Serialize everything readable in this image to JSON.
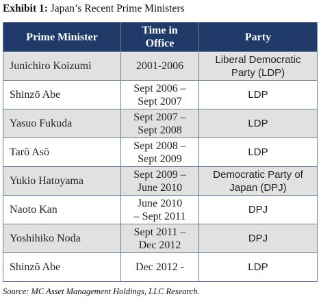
{
  "header": {
    "label": "Exhibit 1:",
    "title": "Japan’s Recent Prime Ministers"
  },
  "table": {
    "columns": [
      "Prime Minister",
      "Time in\nOffice",
      "Party"
    ],
    "rows": [
      [
        "Junichiro Koizumi",
        "2001-2006",
        "Liberal Democratic\nParty (LDP)"
      ],
      [
        "Shinzō Abe",
        "Sept 2006 –\nSept 2007",
        "LDP"
      ],
      [
        "Yasuo Fukuda",
        "Sept 2007 –\nSept 2008",
        "LDP"
      ],
      [
        "Tarō Asō",
        "Sept 2008 –\nSept 2009",
        "LDP"
      ],
      [
        "Yukio Hatoyama",
        "Sept 2009 –\nJune 2010",
        "Democratic Party of\nJapan (DPJ)"
      ],
      [
        "Naoto Kan",
        "June 2010\n– Sept 2011",
        "DPJ"
      ],
      [
        "Yoshihiko Noda",
        "Sept 2011 –\nDec 2012",
        "DPJ"
      ],
      [
        "Shinzō Abe",
        "Dec 2012 -",
        "LDP"
      ]
    ]
  },
  "source": "Source: MC Asset Management Holdings, LLC Research."
}
